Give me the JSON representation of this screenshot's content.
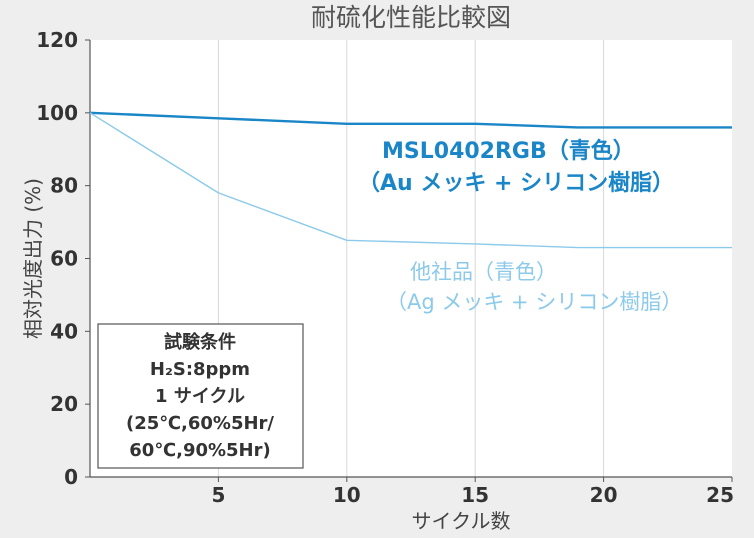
{
  "chart_data": {
    "type": "line",
    "title": "耐硫化性能比較図",
    "xlabel": "サイクル数",
    "ylabel": "相対光度出力 (%)",
    "xlim": [
      0,
      25
    ],
    "ylim": [
      0,
      120
    ],
    "x_ticks": [
      "5",
      "10",
      "15",
      "20",
      "25"
    ],
    "x_tick_values": [
      5,
      10,
      15,
      20,
      25
    ],
    "y_ticks": [
      "0",
      "20",
      "40",
      "60",
      "80",
      "100",
      "120"
    ],
    "y_tick_values": [
      0,
      20,
      40,
      60,
      80,
      100,
      120
    ],
    "grid": "vertical",
    "series": [
      {
        "name_lines": [
          "MSL0402RGB（青色）",
          "（Au メッキ + シリコン樹脂）"
        ],
        "color": "#1a86c7",
        "x": [
          0,
          5,
          10,
          15,
          19,
          25
        ],
        "y": [
          100,
          98.5,
          97,
          97,
          96,
          96
        ]
      },
      {
        "name_lines": [
          "他社品（青色）",
          "（Ag メッキ + シリコン樹脂）"
        ],
        "color": "#8ccaea",
        "x": [
          0,
          5,
          10,
          15,
          19,
          25
        ],
        "y": [
          100,
          78,
          65,
          64,
          63,
          63
        ]
      }
    ],
    "conditions_box": [
      "試験条件",
      "H₂S:8ppm",
      "1 サイクル",
      "(25℃,60%5Hr/",
      "60℃,90%5Hr)"
    ]
  },
  "colors": {
    "background": "#eeeeee",
    "plot_background": "#ffffff",
    "grid": "#d8d8d8",
    "axis": "#555555"
  }
}
